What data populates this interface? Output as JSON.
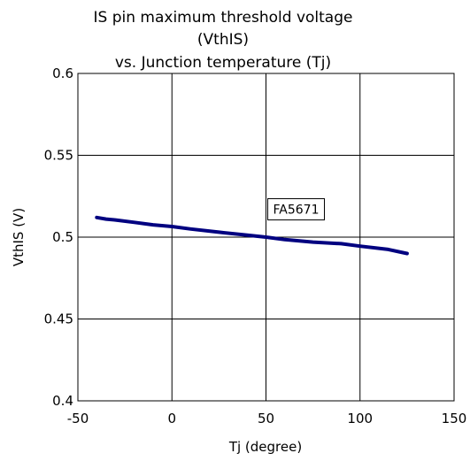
{
  "chart_data": {
    "type": "line",
    "title_lines": [
      "IS pin maximum threshold voltage",
      "(VthIS)",
      "vs. Junction temperature (Tj)"
    ],
    "xlabel": "Tj (degree)",
    "ylabel": "VthIS (V)",
    "xlim": [
      -50,
      150
    ],
    "ylim": [
      0.4,
      0.6
    ],
    "x_ticks": [
      -50,
      0,
      50,
      100,
      150
    ],
    "y_ticks": [
      0.4,
      0.45,
      0.5,
      0.55,
      0.6
    ],
    "x_tick_labels": [
      "-50",
      "0",
      "50",
      "100",
      "150"
    ],
    "y_tick_labels": [
      "0.4",
      "0.45",
      "0.5",
      "0.55",
      "0.6"
    ],
    "grid": true,
    "series": [
      {
        "name": "FA5671",
        "color": "#000080",
        "x": [
          -40,
          -35,
          -30,
          -20,
          -10,
          0,
          10,
          25,
          40,
          50,
          60,
          75,
          90,
          100,
          115,
          125
        ],
        "y": [
          0.512,
          0.511,
          0.5105,
          0.509,
          0.5075,
          0.5065,
          0.505,
          0.503,
          0.5012,
          0.5,
          0.4985,
          0.497,
          0.496,
          0.4945,
          0.4925,
          0.49
        ]
      }
    ],
    "annotation": {
      "text": "FA5671",
      "x": 66,
      "y": 0.517
    }
  }
}
